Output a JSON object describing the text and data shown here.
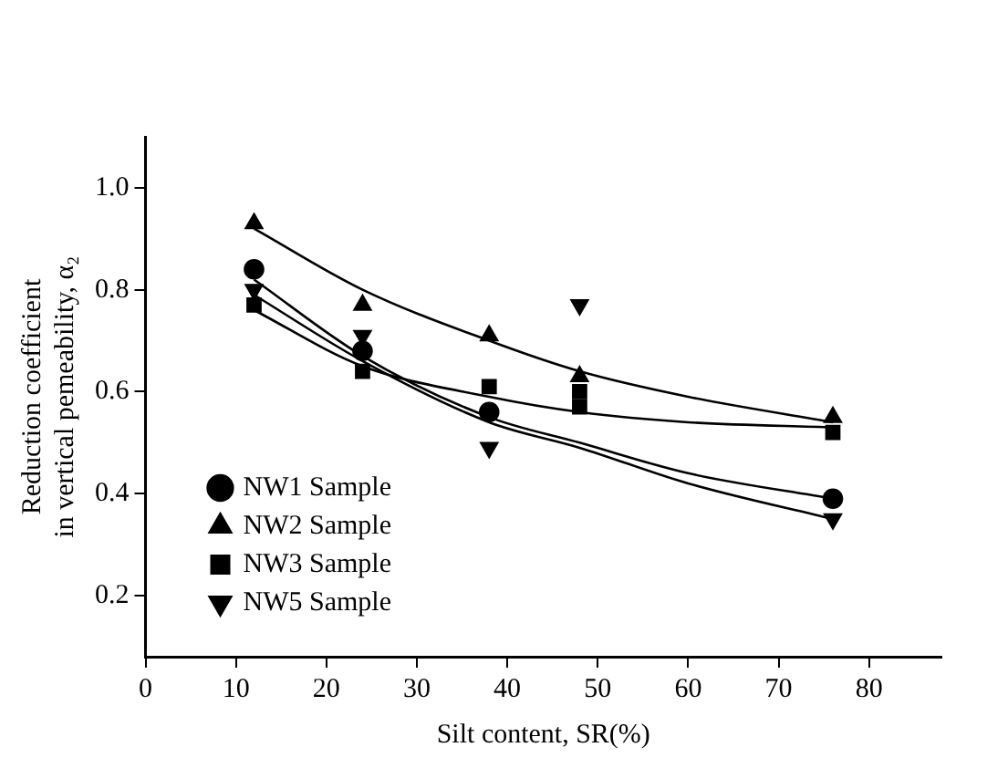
{
  "chart_data": {
    "type": "scatter",
    "xlabel": "Silt content, SR(%)",
    "ylabel": "Reduction coefficient\nin vertical pemeability, α₂",
    "xlim": [
      0,
      88
    ],
    "xticks": [
      0,
      10,
      20,
      30,
      40,
      50,
      60,
      70,
      80
    ],
    "ylim": [
      0.08,
      1.1
    ],
    "yticks": [
      0.2,
      0.4,
      0.6,
      0.8,
      {
        "value": 1,
        "label": "1.0"
      }
    ],
    "grid": false,
    "legend": "bottom left",
    "series": [
      {
        "name": "NW1 Sample",
        "color": "#000000",
        "marker": "circle",
        "x": [
          12,
          24,
          38,
          76
        ],
        "values": [
          0.84,
          0.68,
          0.56,
          0.39
        ]
      },
      {
        "name": "NW2 Sample",
        "color": "#000000",
        "marker": "triangle",
        "x": [
          12,
          24,
          38,
          48,
          76
        ],
        "values": [
          0.93,
          0.77,
          0.71,
          0.63,
          0.55
        ]
      },
      {
        "name": "NW3 Sample",
        "color": "#000000",
        "marker": "square",
        "x": [
          12,
          24,
          38,
          48,
          48,
          76
        ],
        "values": [
          0.77,
          0.64,
          0.61,
          0.6,
          0.57,
          0.52
        ]
      },
      {
        "name": "NW5 Sample",
        "color": "#000000",
        "marker": "triangle_down",
        "x": [
          12,
          24,
          38,
          48,
          76
        ],
        "values": [
          0.8,
          0.71,
          0.49,
          0.77,
          0.35
        ]
      },
      {
        "type": "line",
        "color": "#000000",
        "marker": "none",
        "x": [
          12,
          24,
          38,
          48,
          60,
          76
        ],
        "values": [
          0.82,
          0.67,
          0.55,
          0.5,
          0.44,
          0.39
        ]
      },
      {
        "type": "line",
        "color": "#000000",
        "marker": "none",
        "x": [
          12,
          24,
          38,
          48,
          60,
          76
        ],
        "values": [
          0.92,
          0.8,
          0.7,
          0.64,
          0.59,
          0.54
        ]
      },
      {
        "type": "line",
        "color": "#000000",
        "marker": "none",
        "x": [
          12,
          24,
          38,
          48,
          60,
          76
        ],
        "values": [
          0.76,
          0.65,
          0.59,
          0.56,
          0.54,
          0.53
        ]
      },
      {
        "type": "line",
        "color": "#000000",
        "marker": "none",
        "x": [
          12,
          24,
          38,
          48,
          60,
          76
        ],
        "values": [
          0.79,
          0.66,
          0.54,
          0.49,
          0.42,
          0.35
        ]
      }
    ]
  }
}
